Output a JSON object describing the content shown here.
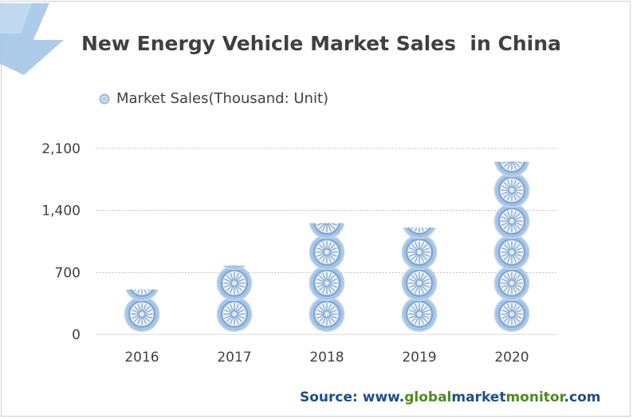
{
  "title": "New Energy Vehicle Market Sales  in China",
  "legend": {
    "label": "Market Sales(Thousand: Unit)"
  },
  "source": {
    "prefix": "Source: www.",
    "part_global": "global",
    "part_market": "market",
    "part_monitor": "monitor",
    "suffix": ".com"
  },
  "colors": {
    "title": "#404040",
    "source_blue": "#1f4e8c",
    "source_green": "#4e8a1f",
    "wheel_blue": "#7fa7d3",
    "arrow_blue": "#9dc3e6"
  },
  "icons": {
    "banner": "arrow-banner-icon",
    "mark": "wheel-icon"
  },
  "chart_data": {
    "type": "bar",
    "title": "New Energy Vehicle Market Sales  in China",
    "categories": [
      "2016",
      "2017",
      "2018",
      "2019",
      "2020"
    ],
    "series": [
      {
        "name": "Market Sales(Thousand: Unit)",
        "values": [
          507,
          777,
          1256,
          1206,
          1950
        ]
      }
    ],
    "ylim": [
      0,
      2100
    ],
    "yticks": [
      "0",
      "700",
      "1,400",
      "2,100"
    ],
    "ytick_values": [
      0,
      700,
      1400,
      2100
    ],
    "unit_per_icon": 350,
    "gridlines": true,
    "legend_position": "top-left",
    "xlabel": "",
    "ylabel": ""
  }
}
